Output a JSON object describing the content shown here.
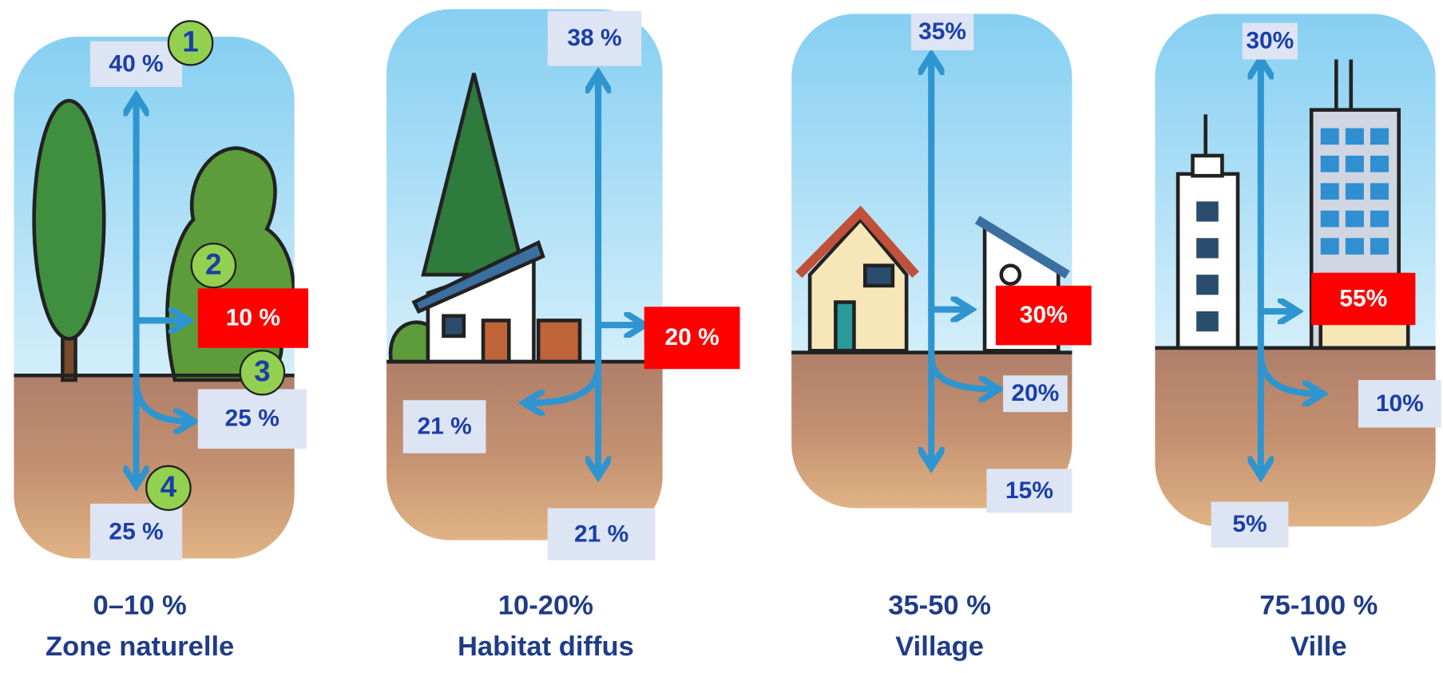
{
  "panels": [
    {
      "evaporation": "40 %",
      "runoff": "10 %",
      "shallow_infiltration": "25 %",
      "deep_infiltration": "25 %",
      "coverage": "0–10 %",
      "label": "Zone naturelle"
    },
    {
      "evaporation": "38 %",
      "runoff": "20 %",
      "shallow_infiltration": "21 %",
      "deep_infiltration": "21 %",
      "coverage": "10-20%",
      "label": "Habitat  diffus"
    },
    {
      "evaporation": "35%",
      "runoff": "30%",
      "shallow_infiltration": "20%",
      "deep_infiltration": "15%",
      "coverage": "35-50 %",
      "label": "Village"
    },
    {
      "evaporation": "30%",
      "runoff": "55%",
      "shallow_infiltration": "10%",
      "deep_infiltration": "5%",
      "coverage": "75-100 %",
      "label": "Ville"
    }
  ],
  "markers": [
    "1",
    "2",
    "3",
    "4"
  ]
}
